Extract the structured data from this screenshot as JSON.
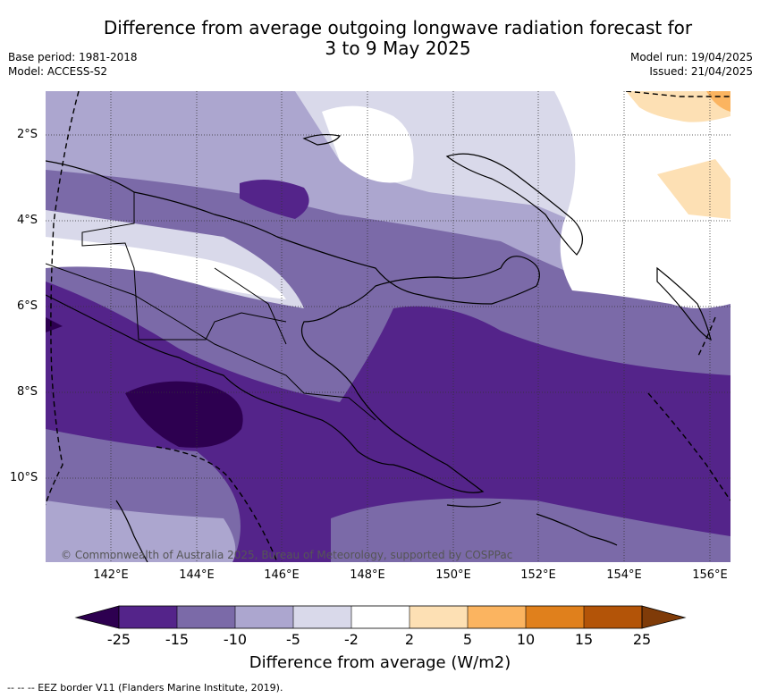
{
  "title_line1": "Difference from average outgoing longwave radiation forecast for",
  "title_line2": "3 to 9 May 2025",
  "base_period": "Base period: 1981-2018",
  "model": "Model: ACCESS-S2",
  "model_run": "Model run: 19/04/2025",
  "issued": "Issued: 21/04/2025",
  "copyright": "© Commonwealth of Australia 2025, Bureau of Meteorology, supported by COSPPac",
  "lat_labels": [
    "2°S",
    "4°S",
    "6°S",
    "8°S",
    "10°S"
  ],
  "lon_labels": [
    "142°E",
    "144°E",
    "146°E",
    "148°E",
    "150°E",
    "152°E",
    "154°E",
    "156°E"
  ],
  "colorbar": {
    "title": "Difference from average (W/m2)",
    "tick_labels": [
      "-25",
      "-15",
      "-10",
      "-5",
      "-2",
      "2",
      "5",
      "10",
      "15",
      "25"
    ],
    "colors": [
      "#2d0050",
      "#54248a",
      "#7b6aa8",
      "#aca6cf",
      "#d9d9ea",
      "#ffffff",
      "#fde0b4",
      "#fbb460",
      "#e0801c",
      "#b35408",
      "#7f3b08"
    ]
  },
  "footnote": "-- -- -- EEZ border V11 (Flanders Marine Institute, 2019)."
}
